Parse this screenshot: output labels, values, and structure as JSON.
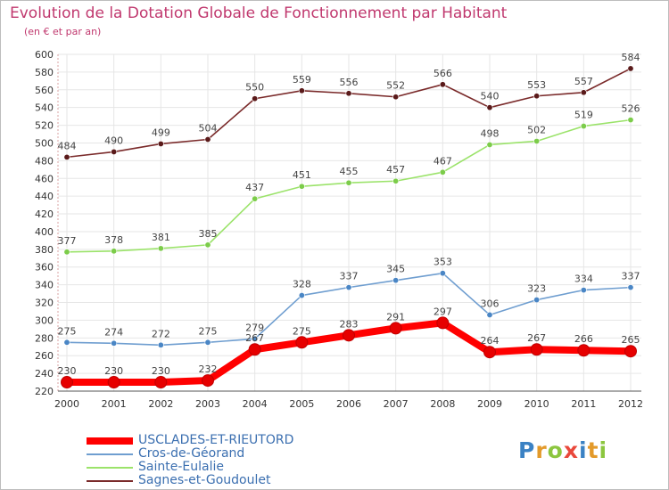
{
  "title": "Evolution de la Dotation Globale de Fonctionnement par Habitant",
  "subtitle": "(en € et par an)",
  "colors": {
    "title": "#c0386e",
    "axis": "#555555",
    "grid": "#e6e6e6",
    "ticks": "#333333",
    "labels": "#444444",
    "legend_text": "#3b6fb0"
  },
  "chart_data": {
    "type": "line",
    "title": "Evolution de la Dotation Globale de Fonctionnement par Habitant",
    "subtitle": "(en € et par an)",
    "x": [
      "2000",
      "2001",
      "2002",
      "2003",
      "2004",
      "2005",
      "2006",
      "2007",
      "2008",
      "2009",
      "2010",
      "2011",
      "2012"
    ],
    "y_ticks": [
      220,
      240,
      260,
      280,
      300,
      320,
      340,
      360,
      380,
      400,
      420,
      440,
      460,
      480,
      500,
      520,
      540,
      560,
      580,
      600
    ],
    "ylim": [
      220,
      600
    ],
    "grid": true,
    "legend_position": "bottom-left",
    "series": [
      {
        "name": "USCLADES-ET-RIEUTORD",
        "color": "#ff0000",
        "marker_color": "#e60000",
        "highlight": true,
        "values": [
          230,
          230,
          230,
          232,
          267,
          275,
          283,
          291,
          297,
          264,
          267,
          266,
          265
        ],
        "labels": [
          "230",
          "230",
          "230",
          "232",
          "267",
          "275",
          "283",
          "291",
          "297",
          "264",
          "267",
          "266",
          "265"
        ]
      },
      {
        "name": "Cros-de-Géorand",
        "color": "#6f9ed0",
        "marker_color": "#4a86c5",
        "highlight": false,
        "values": [
          275,
          274,
          272,
          275,
          279,
          328,
          337,
          345,
          353,
          306,
          323,
          334,
          337
        ],
        "labels": [
          "275",
          "274",
          "272",
          "275",
          "279",
          "328",
          "337",
          "345",
          "353",
          "306",
          "323",
          "334",
          "337"
        ]
      },
      {
        "name": "Sainte-Eulalie",
        "color": "#9be36a",
        "marker_color": "#7ccc4a",
        "highlight": false,
        "values": [
          377,
          378,
          381,
          385,
          437,
          451,
          455,
          457,
          467,
          498,
          502,
          519,
          526
        ],
        "labels": [
          "377",
          "378",
          "381",
          "385",
          "437",
          "451",
          "455",
          "457",
          "467",
          "498",
          "502",
          "519",
          "526"
        ]
      },
      {
        "name": "Sagnes-et-Goudoulet",
        "color": "#7a2a2a",
        "marker_color": "#5a1a1a",
        "highlight": false,
        "values": [
          484,
          490,
          499,
          504,
          550,
          559,
          556,
          552,
          566,
          540,
          553,
          557,
          584
        ],
        "labels": [
          "484",
          "490",
          "499",
          "504",
          "550",
          "559",
          "556",
          "552",
          "566",
          "540",
          "553",
          "557",
          "584"
        ]
      }
    ]
  },
  "legend": {
    "items": [
      {
        "label": "USCLADES-ET-RIEUTORD"
      },
      {
        "label": "Cros-de-Géorand"
      },
      {
        "label": "Sainte-Eulalie"
      },
      {
        "label": "Sagnes-et-Goudoulet"
      }
    ]
  },
  "logo": {
    "text": "Proxiti",
    "letters": [
      {
        "ch": "P",
        "color": "#3b82c4"
      },
      {
        "ch": "r",
        "color": "#e39a2a"
      },
      {
        "ch": "o",
        "color": "#8cc63f"
      },
      {
        "ch": "x",
        "color": "#e9483b"
      },
      {
        "ch": "i",
        "color": "#3b82c4"
      },
      {
        "ch": "t",
        "color": "#e39a2a"
      },
      {
        "ch": "i",
        "color": "#8cc63f"
      }
    ]
  }
}
